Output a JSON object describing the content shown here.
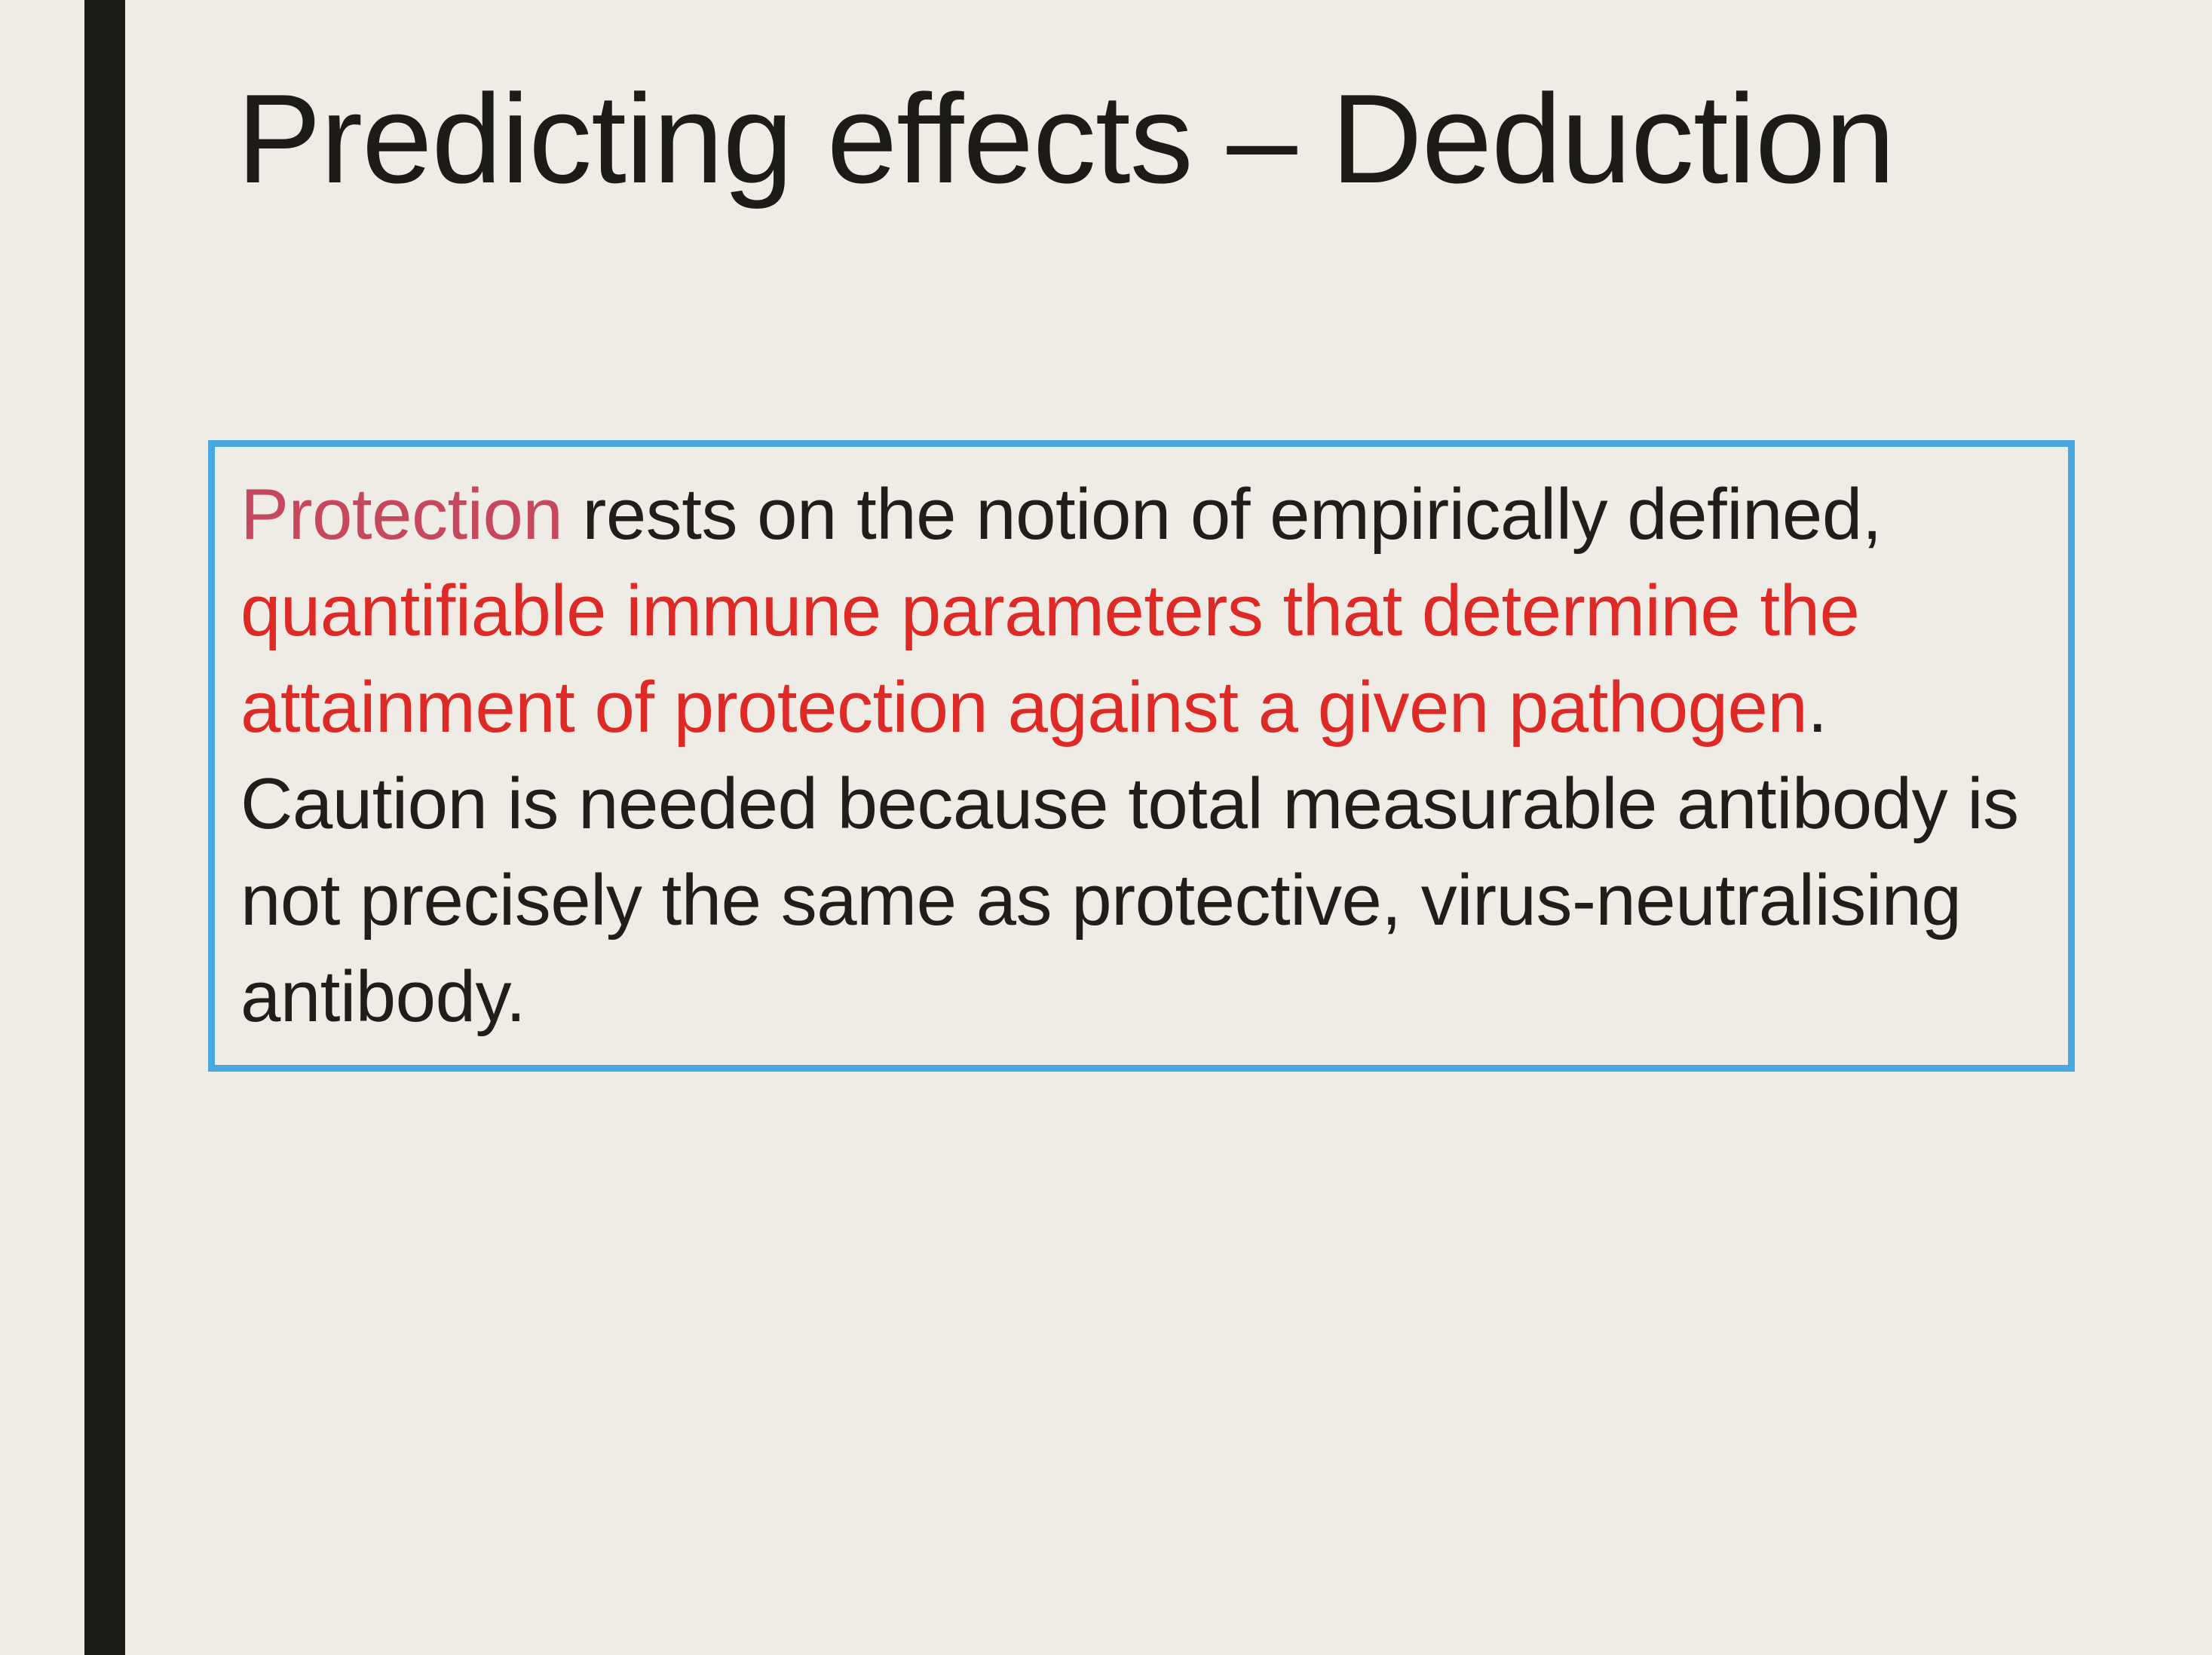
{
  "slide": {
    "title": "Predicting effects – Deduction",
    "body": {
      "term": "Protection",
      "part1": " rests on the notion of empirically defined, ",
      "highlight": "quantifiable immune parameters that determine the attainment of protection against a given pathogen",
      "part2": ". Caution is needed because total measurable antibody is not precisely the same as protective, virus-neutralising antibody."
    }
  },
  "colors": {
    "background": "#efece6",
    "accent_bar": "#1c1b15",
    "box_border": "#4aa8e0",
    "term_highlight": "#c5485c",
    "key_phrase_highlight": "#de2a26",
    "text": "#1f1e1a"
  }
}
